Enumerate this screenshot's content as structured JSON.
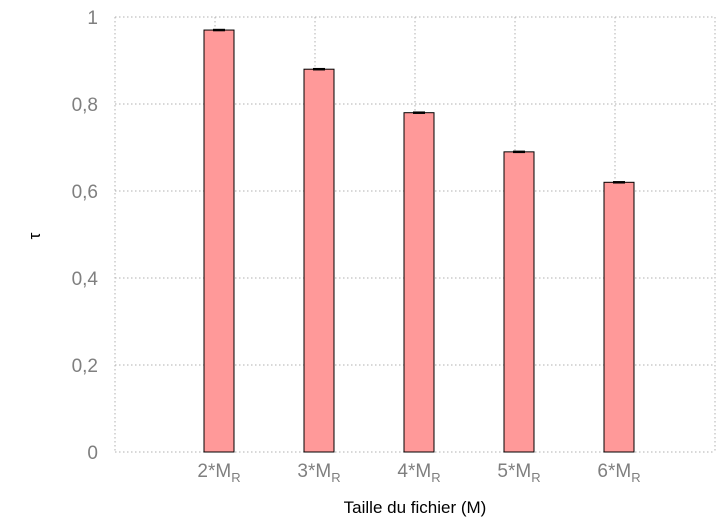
{
  "chart_data": {
    "type": "bar",
    "categories": [
      {
        "main": "2*M",
        "sub": "R"
      },
      {
        "main": "3*M",
        "sub": "R"
      },
      {
        "main": "4*M",
        "sub": "R"
      },
      {
        "main": "5*M",
        "sub": "R"
      },
      {
        "main": "6*M",
        "sub": "R"
      }
    ],
    "values": [
      0.97,
      0.88,
      0.78,
      0.69,
      0.62
    ],
    "xlabel": "Taille du fichier (M)",
    "ylabel": "τ",
    "ylim": [
      0,
      1
    ],
    "yticks": [
      "0",
      "0,2",
      "0,4",
      "0,6",
      "0,8",
      "1"
    ],
    "grid": true,
    "bar_color": "#ff9999",
    "error_bars": true
  }
}
